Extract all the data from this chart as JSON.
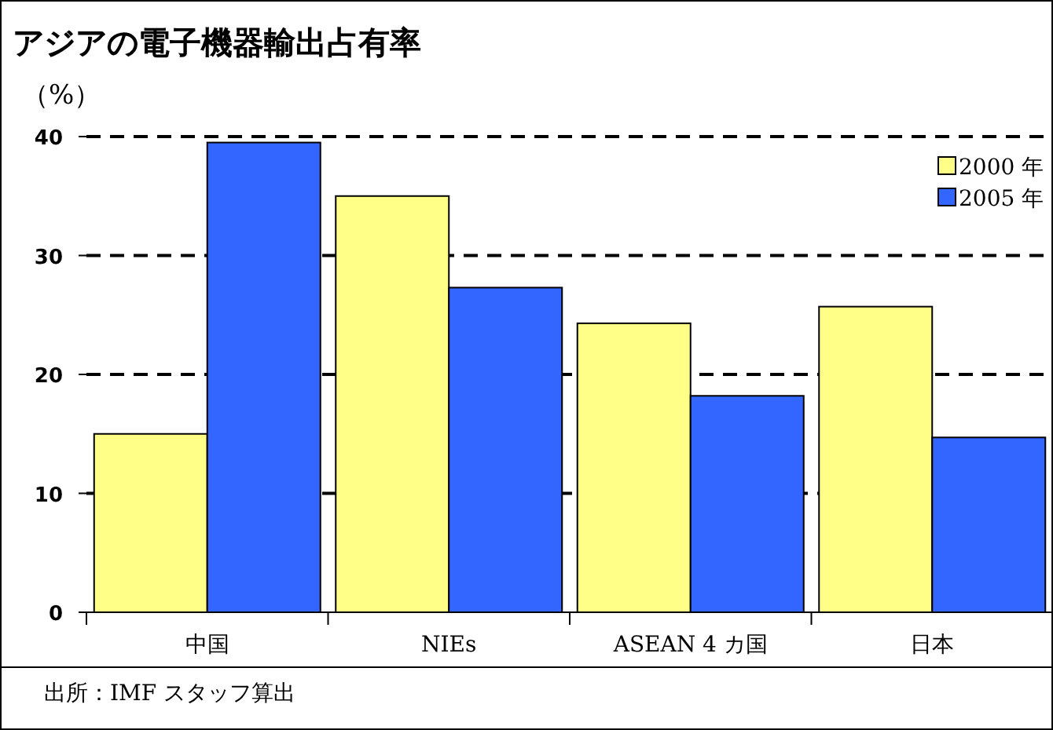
{
  "chart_data": {
    "type": "bar",
    "title": "アジアの電子機器輸出占有率",
    "ylabel": "（%）",
    "categories": [
      "中国",
      "NIEs",
      "ASEAN 4 カ国",
      "日本"
    ],
    "series": [
      {
        "name": "2000 年",
        "color": "#ffff88",
        "values": [
          15,
          35,
          24.3,
          25.7
        ]
      },
      {
        "name": "2005 年",
        "color": "#3366ff",
        "values": [
          39.5,
          27.3,
          18.2,
          14.7
        ]
      }
    ],
    "ylim": [
      0,
      40
    ],
    "yticks": [
      0,
      10,
      20,
      30,
      40
    ],
    "grid": "y",
    "line_style": "dashed",
    "legend": "top right",
    "annotations": [
      "出所：IMF スタッフ算出"
    ]
  }
}
